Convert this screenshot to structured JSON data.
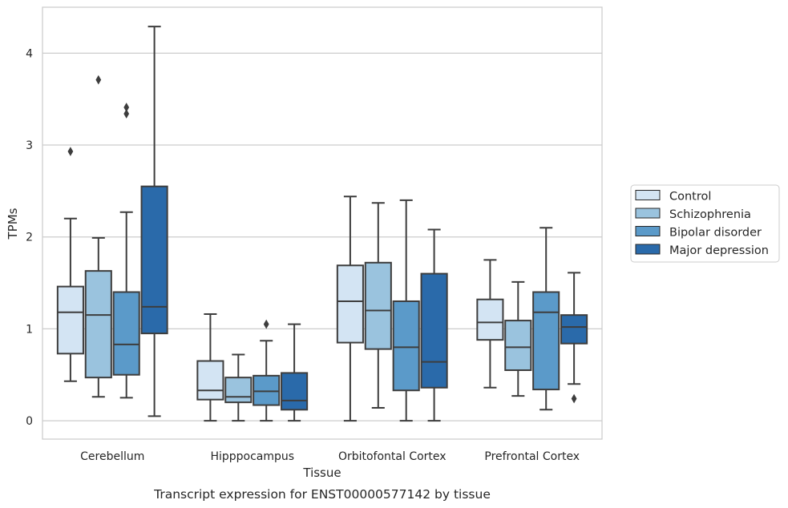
{
  "chart_data": {
    "type": "boxplot",
    "caption": "Transcript expression for ENST00000577142 by tissue",
    "xlabel": "Tissue",
    "ylabel": "TPMs",
    "ylim": [
      -0.2,
      4.5
    ],
    "yticks": [
      0,
      1,
      2,
      3,
      4
    ],
    "grid": "horizontal",
    "legend_position": "right",
    "categories": [
      "Cerebellum",
      "Hipppocampus",
      "Orbitofontal Cortex",
      "Prefrontal Cortex"
    ],
    "series": [
      {
        "name": "Control",
        "color": "#d3e4f3",
        "boxes": [
          {
            "whisker_low": 0.43,
            "q1": 0.73,
            "median": 1.18,
            "q3": 1.46,
            "whisker_high": 2.2,
            "outliers": [
              2.93
            ]
          },
          {
            "whisker_low": 0.0,
            "q1": 0.23,
            "median": 0.33,
            "q3": 0.65,
            "whisker_high": 1.16,
            "outliers": []
          },
          {
            "whisker_low": 0.0,
            "q1": 0.85,
            "median": 1.3,
            "q3": 1.69,
            "whisker_high": 2.44,
            "outliers": []
          },
          {
            "whisker_low": 0.36,
            "q1": 0.88,
            "median": 1.07,
            "q3": 1.32,
            "whisker_high": 1.75,
            "outliers": []
          }
        ]
      },
      {
        "name": "Schizophrenia",
        "color": "#9ac3de",
        "boxes": [
          {
            "whisker_low": 0.26,
            "q1": 0.47,
            "median": 1.15,
            "q3": 1.63,
            "whisker_high": 1.99,
            "outliers": [
              3.71
            ]
          },
          {
            "whisker_low": 0.0,
            "q1": 0.2,
            "median": 0.26,
            "q3": 0.47,
            "whisker_high": 0.72,
            "outliers": []
          },
          {
            "whisker_low": 0.14,
            "q1": 0.78,
            "median": 1.2,
            "q3": 1.72,
            "whisker_high": 2.37,
            "outliers": []
          },
          {
            "whisker_low": 0.27,
            "q1": 0.55,
            "median": 0.8,
            "q3": 1.09,
            "whisker_high": 1.51,
            "outliers": []
          }
        ]
      },
      {
        "name": "Bipolar disorder",
        "color": "#5b9ac9",
        "boxes": [
          {
            "whisker_low": 0.25,
            "q1": 0.5,
            "median": 0.83,
            "q3": 1.4,
            "whisker_high": 2.27,
            "outliers": [
              3.41,
              3.34
            ]
          },
          {
            "whisker_low": 0.0,
            "q1": 0.17,
            "median": 0.32,
            "q3": 0.49,
            "whisker_high": 0.87,
            "outliers": [
              1.05
            ]
          },
          {
            "whisker_low": 0.0,
            "q1": 0.33,
            "median": 0.8,
            "q3": 1.3,
            "whisker_high": 2.4,
            "outliers": []
          },
          {
            "whisker_low": 0.12,
            "q1": 0.34,
            "median": 1.18,
            "q3": 1.4,
            "whisker_high": 2.1,
            "outliers": []
          }
        ]
      },
      {
        "name": "Major depression",
        "color": "#2a6aaa",
        "boxes": [
          {
            "whisker_low": 0.05,
            "q1": 0.95,
            "median": 1.24,
            "q3": 2.55,
            "whisker_high": 4.29,
            "outliers": []
          },
          {
            "whisker_low": 0.0,
            "q1": 0.12,
            "median": 0.22,
            "q3": 0.52,
            "whisker_high": 1.05,
            "outliers": []
          },
          {
            "whisker_low": 0.0,
            "q1": 0.36,
            "median": 0.64,
            "q3": 1.6,
            "whisker_high": 2.08,
            "outliers": []
          },
          {
            "whisker_low": 0.4,
            "q1": 0.84,
            "median": 1.02,
            "q3": 1.15,
            "whisker_high": 1.61,
            "outliers": [
              0.24
            ]
          }
        ]
      }
    ]
  }
}
